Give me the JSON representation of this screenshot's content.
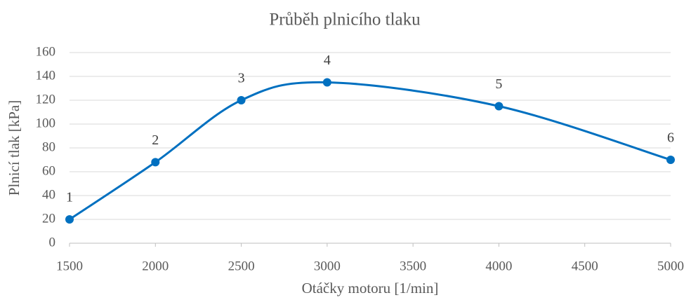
{
  "chart_data": {
    "type": "line",
    "title": "Průběh plnicího tlaku",
    "x_label": "Otáčky motoru [1/min]",
    "y_label": "Plnicí tlak [kPa]",
    "x": [
      1500,
      2000,
      2500,
      3000,
      4000,
      5000
    ],
    "series": [
      {
        "name": "Plnicí tlak",
        "color": "#0070c0",
        "values": [
          20,
          68,
          120,
          135,
          115,
          70
        ]
      }
    ],
    "point_labels": [
      1,
      2,
      3,
      4,
      5,
      6
    ],
    "smooth": true,
    "xlim": [
      1500,
      5000
    ],
    "xticks": [
      1500,
      2000,
      2500,
      3000,
      3500,
      4000,
      4500,
      5000
    ],
    "ylim": [
      0,
      160
    ],
    "yticks": [
      0,
      20,
      40,
      60,
      80,
      100,
      120,
      140,
      160
    ],
    "grid": true
  }
}
